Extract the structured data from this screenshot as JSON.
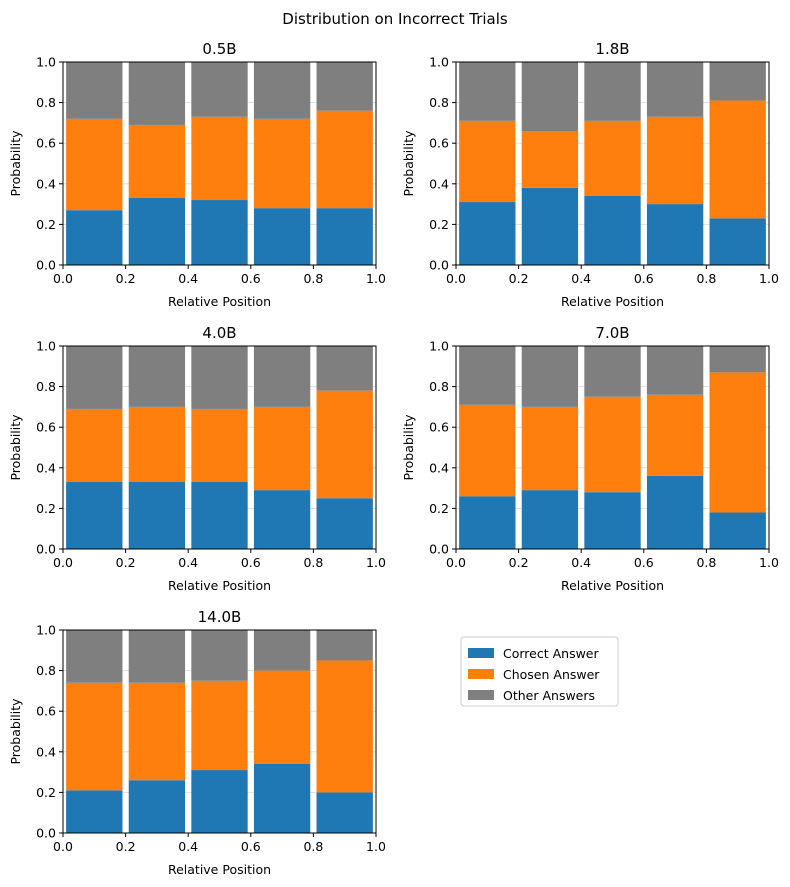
{
  "figure": {
    "title": "Distribution on Incorrect Trials"
  },
  "colors": {
    "correct": "#1f77b4",
    "chosen": "#ff7f0e",
    "other": "#7f7f7f",
    "grid": "#d9d9d9"
  },
  "legend": {
    "placement": "empty-cell-top-left",
    "entries": [
      {
        "label": "Correct Answer",
        "color_key": "correct"
      },
      {
        "label": "Chosen Answer",
        "color_key": "chosen"
      },
      {
        "label": "Other Answers",
        "color_key": "other"
      }
    ]
  },
  "chart_data": [
    {
      "type": "bar",
      "stacked": true,
      "title": "0.5B",
      "xlabel": "Relative Position",
      "ylabel": "Probability",
      "xlim": [
        0,
        1
      ],
      "ylim": [
        0,
        1
      ],
      "xticks": [
        "0.0",
        "0.2",
        "0.4",
        "0.6",
        "0.8",
        "1.0"
      ],
      "yticks": [
        "0.0",
        "0.2",
        "0.4",
        "0.6",
        "0.8",
        "1.0"
      ],
      "grid": "y",
      "bin_centers": [
        0.1,
        0.3,
        0.5,
        0.7,
        0.9
      ],
      "series": [
        {
          "name": "Correct Answer",
          "values": [
            0.27,
            0.33,
            0.32,
            0.28,
            0.28
          ]
        },
        {
          "name": "Chosen Answer",
          "values": [
            0.45,
            0.36,
            0.41,
            0.44,
            0.48
          ]
        },
        {
          "name": "Other Answers",
          "values": [
            0.28,
            0.31,
            0.27,
            0.28,
            0.24
          ]
        }
      ]
    },
    {
      "type": "bar",
      "stacked": true,
      "title": "1.8B",
      "xlabel": "Relative Position",
      "ylabel": "Probability",
      "xlim": [
        0,
        1
      ],
      "ylim": [
        0,
        1
      ],
      "xticks": [
        "0.0",
        "0.2",
        "0.4",
        "0.6",
        "0.8",
        "1.0"
      ],
      "yticks": [
        "0.0",
        "0.2",
        "0.4",
        "0.6",
        "0.8",
        "1.0"
      ],
      "grid": "y",
      "bin_centers": [
        0.1,
        0.3,
        0.5,
        0.7,
        0.9
      ],
      "series": [
        {
          "name": "Correct Answer",
          "values": [
            0.31,
            0.38,
            0.34,
            0.3,
            0.23
          ]
        },
        {
          "name": "Chosen Answer",
          "values": [
            0.4,
            0.28,
            0.37,
            0.43,
            0.58
          ]
        },
        {
          "name": "Other Answers",
          "values": [
            0.29,
            0.34,
            0.29,
            0.27,
            0.19
          ]
        }
      ]
    },
    {
      "type": "bar",
      "stacked": true,
      "title": "4.0B",
      "xlabel": "Relative Position",
      "ylabel": "Probability",
      "xlim": [
        0,
        1
      ],
      "ylim": [
        0,
        1
      ],
      "xticks": [
        "0.0",
        "0.2",
        "0.4",
        "0.6",
        "0.8",
        "1.0"
      ],
      "yticks": [
        "0.0",
        "0.2",
        "0.4",
        "0.6",
        "0.8",
        "1.0"
      ],
      "grid": "y",
      "bin_centers": [
        0.1,
        0.3,
        0.5,
        0.7,
        0.9
      ],
      "series": [
        {
          "name": "Correct Answer",
          "values": [
            0.33,
            0.33,
            0.33,
            0.29,
            0.25
          ]
        },
        {
          "name": "Chosen Answer",
          "values": [
            0.36,
            0.37,
            0.36,
            0.41,
            0.53
          ]
        },
        {
          "name": "Other Answers",
          "values": [
            0.31,
            0.3,
            0.31,
            0.3,
            0.22
          ]
        }
      ]
    },
    {
      "type": "bar",
      "stacked": true,
      "title": "7.0B",
      "xlabel": "Relative Position",
      "ylabel": "Probability",
      "xlim": [
        0,
        1
      ],
      "ylim": [
        0,
        1
      ],
      "xticks": [
        "0.0",
        "0.2",
        "0.4",
        "0.6",
        "0.8",
        "1.0"
      ],
      "yticks": [
        "0.0",
        "0.2",
        "0.4",
        "0.6",
        "0.8",
        "1.0"
      ],
      "grid": "y",
      "bin_centers": [
        0.1,
        0.3,
        0.5,
        0.7,
        0.9
      ],
      "series": [
        {
          "name": "Correct Answer",
          "values": [
            0.26,
            0.29,
            0.28,
            0.36,
            0.18
          ]
        },
        {
          "name": "Chosen Answer",
          "values": [
            0.45,
            0.41,
            0.47,
            0.4,
            0.69
          ]
        },
        {
          "name": "Other Answers",
          "values": [
            0.29,
            0.3,
            0.25,
            0.24,
            0.13
          ]
        }
      ]
    },
    {
      "type": "bar",
      "stacked": true,
      "title": "14.0B",
      "xlabel": "Relative Position",
      "ylabel": "Probability",
      "xlim": [
        0,
        1
      ],
      "ylim": [
        0,
        1
      ],
      "xticks": [
        "0.0",
        "0.2",
        "0.4",
        "0.6",
        "0.8",
        "1.0"
      ],
      "yticks": [
        "0.0",
        "0.2",
        "0.4",
        "0.6",
        "0.8",
        "1.0"
      ],
      "grid": "y",
      "bin_centers": [
        0.1,
        0.3,
        0.5,
        0.7,
        0.9
      ],
      "series": [
        {
          "name": "Correct Answer",
          "values": [
            0.21,
            0.26,
            0.31,
            0.34,
            0.2
          ]
        },
        {
          "name": "Chosen Answer",
          "values": [
            0.53,
            0.48,
            0.44,
            0.46,
            0.65
          ]
        },
        {
          "name": "Other Answers",
          "values": [
            0.26,
            0.26,
            0.25,
            0.2,
            0.15
          ]
        }
      ]
    }
  ]
}
